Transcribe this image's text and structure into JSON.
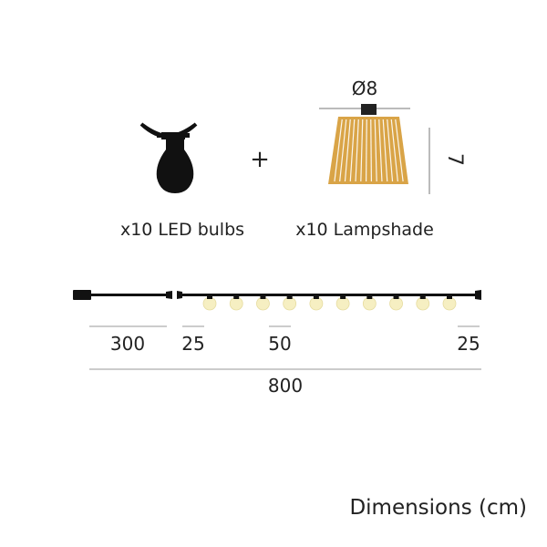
{
  "components": {
    "bulb_label": "x10 LED bulbs",
    "plus": "+",
    "lampshade_label": "x10 Lampshade",
    "lampshade_diameter": "Ø8",
    "lampshade_height": "7"
  },
  "string_light": {
    "bulb_count": 10,
    "segments": [
      "300",
      "25",
      "50",
      "25"
    ],
    "total_length": "800"
  },
  "caption": "Dimensions (cm)",
  "colors": {
    "cable": "#111111",
    "bulb_glow": "#f6efc2",
    "lampshade": "#d9a447",
    "dimension_line": "#999999"
  }
}
